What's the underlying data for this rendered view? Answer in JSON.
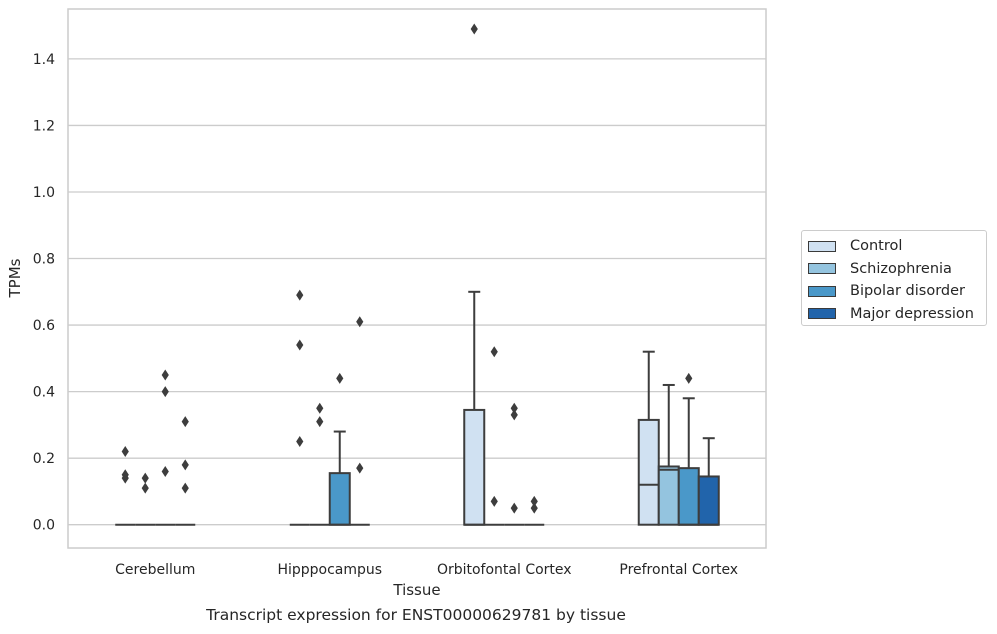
{
  "caption": "Transcript expression for ENST00000629781 by tissue",
  "chart_data": {
    "type": "box",
    "title": "",
    "xlabel": "Tissue",
    "ylabel": "TPMs",
    "ylim": [
      -0.07,
      1.55
    ],
    "yticks": [
      0.0,
      0.2,
      0.4,
      0.6,
      0.8,
      1.0,
      1.2,
      1.4
    ],
    "ytick_labels": [
      "0.0",
      "0.2",
      "0.4",
      "0.6",
      "0.8",
      "1.0",
      "1.2",
      "1.4"
    ],
    "categories": [
      "Cerebellum",
      "Hipppocampus",
      "Orbitofontal Cortex",
      "Prefrontal Cortex"
    ],
    "grid": "horizontal",
    "legend_position": "right",
    "series": [
      {
        "name": "Control",
        "color": "#d0e1f2",
        "boxes": [
          {
            "q1": 0,
            "median": 0,
            "q3": 0,
            "whisker_low": 0,
            "whisker_high": 0,
            "outliers": [
              0.14,
              0.15,
              0.22
            ]
          },
          {
            "q1": 0,
            "median": 0,
            "q3": 0,
            "whisker_low": 0,
            "whisker_high": 0,
            "outliers": [
              0.25,
              0.54,
              0.69
            ]
          },
          {
            "q1": 0,
            "median": 0,
            "q3": 0.345,
            "whisker_low": 0,
            "whisker_high": 0.7,
            "outliers": [
              1.49
            ]
          },
          {
            "q1": 0,
            "median": 0.12,
            "q3": 0.315,
            "whisker_low": 0,
            "whisker_high": 0.52,
            "outliers": []
          }
        ]
      },
      {
        "name": "Schizophrenia",
        "color": "#94c4df",
        "boxes": [
          {
            "q1": 0,
            "median": 0,
            "q3": 0,
            "whisker_low": 0,
            "whisker_high": 0,
            "outliers": [
              0.11,
              0.14
            ]
          },
          {
            "q1": 0,
            "median": 0,
            "q3": 0,
            "whisker_low": 0,
            "whisker_high": 0,
            "outliers": [
              0.31,
              0.35
            ]
          },
          {
            "q1": 0,
            "median": 0,
            "q3": 0,
            "whisker_low": 0,
            "whisker_high": 0,
            "outliers": [
              0.07,
              0.52
            ]
          },
          {
            "q1": 0,
            "median": 0.165,
            "q3": 0.175,
            "whisker_low": 0,
            "whisker_high": 0.42,
            "outliers": []
          }
        ]
      },
      {
        "name": "Bipolar disorder",
        "color": "#4a98c9",
        "boxes": [
          {
            "q1": 0,
            "median": 0,
            "q3": 0,
            "whisker_low": 0,
            "whisker_high": 0,
            "outliers": [
              0.16,
              0.4,
              0.45
            ]
          },
          {
            "q1": 0,
            "median": 0,
            "q3": 0.155,
            "whisker_low": 0,
            "whisker_high": 0.28,
            "outliers": [
              0.44
            ]
          },
          {
            "q1": 0,
            "median": 0,
            "q3": 0,
            "whisker_low": 0,
            "whisker_high": 0,
            "outliers": [
              0.05,
              0.33,
              0.35
            ]
          },
          {
            "q1": 0,
            "median": 0,
            "q3": 0.17,
            "whisker_low": 0,
            "whisker_high": 0.38,
            "outliers": [
              0.44
            ]
          }
        ]
      },
      {
        "name": "Major depression",
        "color": "#2164ab",
        "boxes": [
          {
            "q1": 0,
            "median": 0,
            "q3": 0,
            "whisker_low": 0,
            "whisker_high": 0,
            "outliers": [
              0.11,
              0.18,
              0.31
            ]
          },
          {
            "q1": 0,
            "median": 0,
            "q3": 0,
            "whisker_low": 0,
            "whisker_high": 0,
            "outliers": [
              0.17,
              0.61
            ]
          },
          {
            "q1": 0,
            "median": 0,
            "q3": 0,
            "whisker_low": 0,
            "whisker_high": 0,
            "outliers": [
              0.05,
              0.07
            ]
          },
          {
            "q1": 0,
            "median": 0,
            "q3": 0.145,
            "whisker_low": 0,
            "whisker_high": 0.26,
            "outliers": []
          }
        ]
      }
    ]
  }
}
